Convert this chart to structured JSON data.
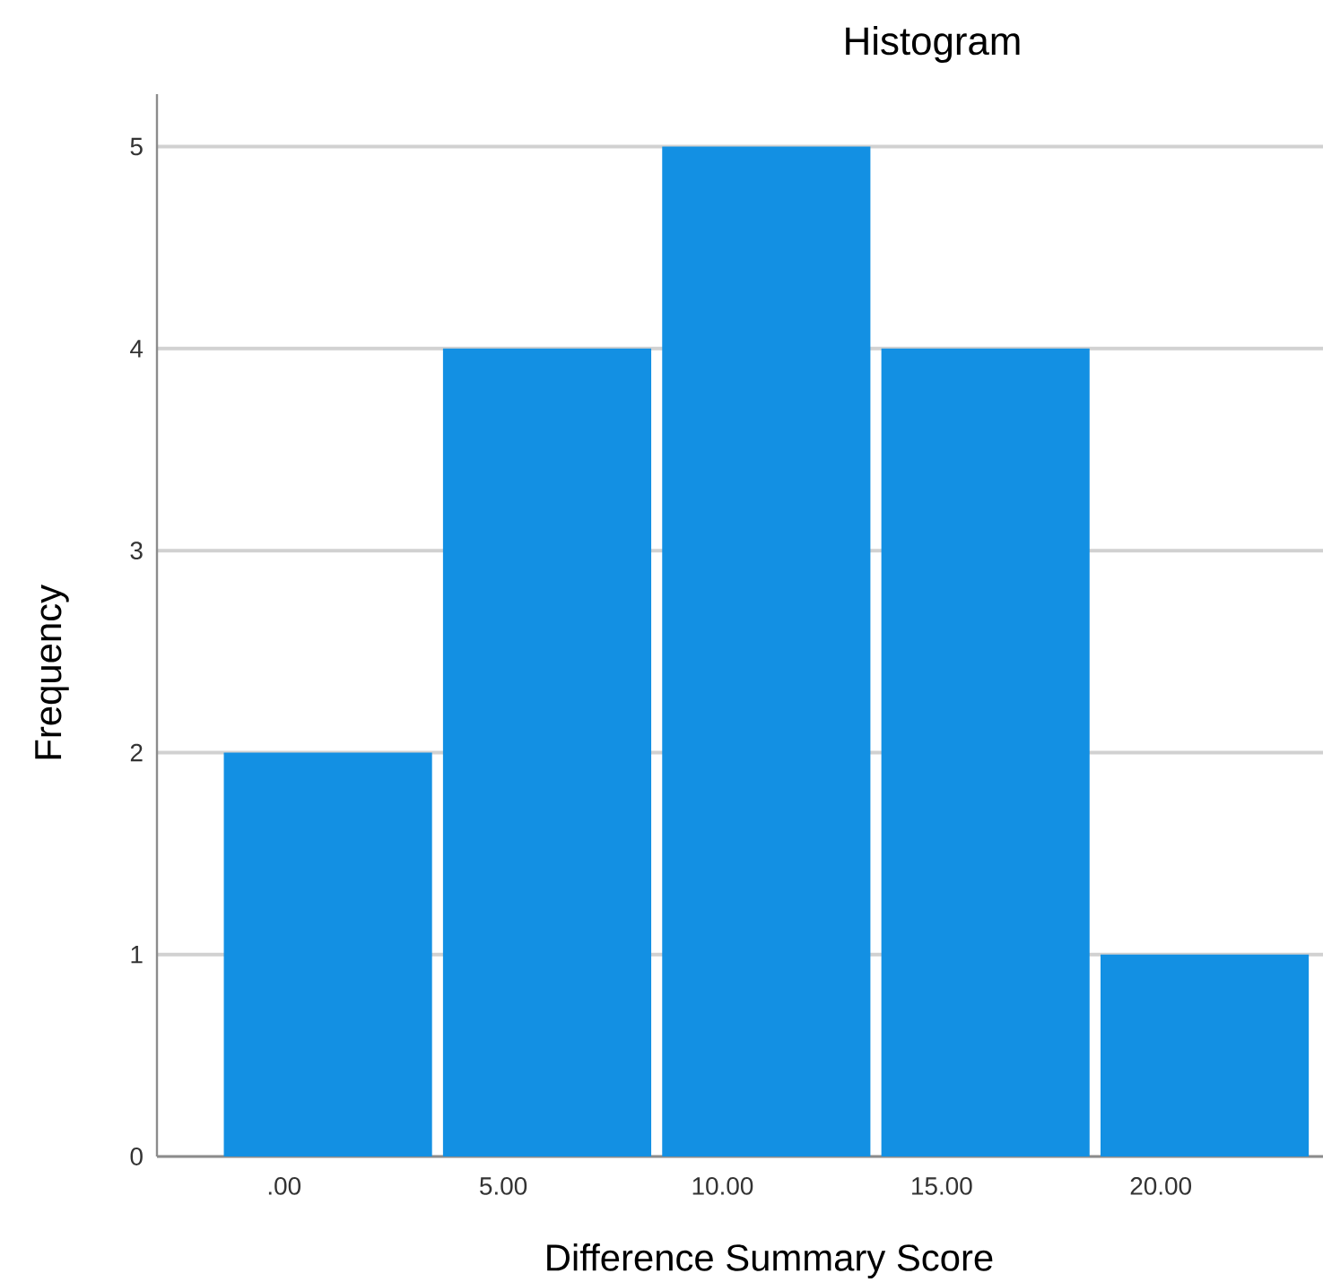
{
  "chart_data": {
    "type": "histogram",
    "title": "Histogram",
    "xlabel": "Difference Summary Score",
    "ylabel": "Frequency",
    "bins": [
      -1.5,
      3.5,
      8.5,
      13.5,
      18.5,
      23.5
    ],
    "values": [
      2,
      4,
      5,
      4,
      1
    ],
    "color": "#1390e3",
    "xlim": [
      -2.9,
      23.7
    ],
    "xticks": [
      {
        "value": 0,
        "label": ".00"
      },
      {
        "value": 5,
        "label": "5.00"
      },
      {
        "value": 10,
        "label": "10.00"
      },
      {
        "value": 15,
        "label": "15.00"
      },
      {
        "value": 20,
        "label": "20.00"
      }
    ],
    "ylim": [
      0,
      5.26
    ],
    "yticks": [
      0,
      1,
      2,
      3,
      4,
      5
    ],
    "grid": "y"
  }
}
